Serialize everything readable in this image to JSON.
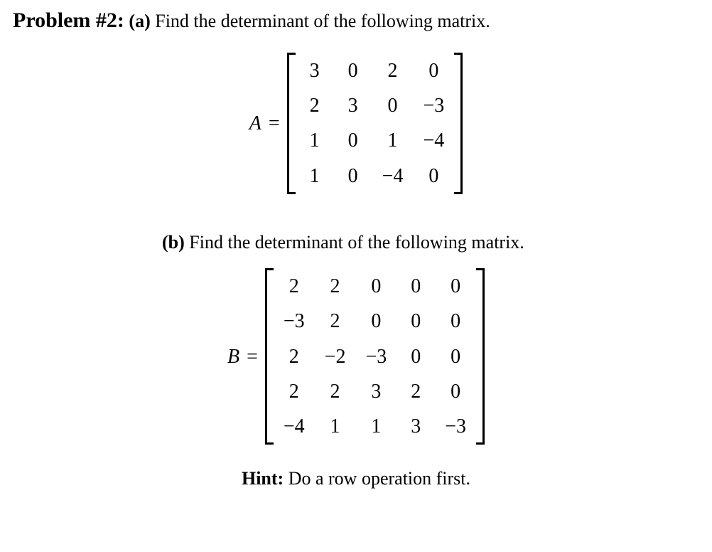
{
  "problem": {
    "label": "Problem #2:",
    "part_a_marker": "(a)",
    "part_a_text": "Find the determinant of the following matrix.",
    "part_b_marker": "(b)",
    "part_b_text": "Find the determinant of the following matrix.",
    "hint_label": "Hint:",
    "hint_text": "Do a row operation first."
  },
  "matrix_A": {
    "name": "A",
    "equals": "=",
    "rows": 4,
    "cols": 4,
    "cells": [
      "3",
      "0",
      "2",
      "0",
      "2",
      "3",
      "0",
      "−3",
      "1",
      "0",
      "1",
      "−4",
      "1",
      "0",
      "−4",
      "0"
    ],
    "bracket_color": "#000000",
    "font_size": 28,
    "col_gap": 28,
    "row_gap": 10
  },
  "matrix_B": {
    "name": "B",
    "equals": "=",
    "rows": 5,
    "cols": 5,
    "cells": [
      "2",
      "2",
      "0",
      "0",
      "0",
      "−3",
      "2",
      "0",
      "0",
      "0",
      "2",
      "−2",
      "−3",
      "0",
      "0",
      "2",
      "2",
      "3",
      "2",
      "0",
      "−4",
      "1",
      "1",
      "3",
      "−3"
    ],
    "bracket_color": "#000000",
    "font_size": 28,
    "col_gap": 28,
    "row_gap": 10
  },
  "style": {
    "background_color": "#ffffff",
    "text_color": "#000000",
    "font_family": "Times New Roman",
    "label_fontsize": 30,
    "body_fontsize": 26
  }
}
